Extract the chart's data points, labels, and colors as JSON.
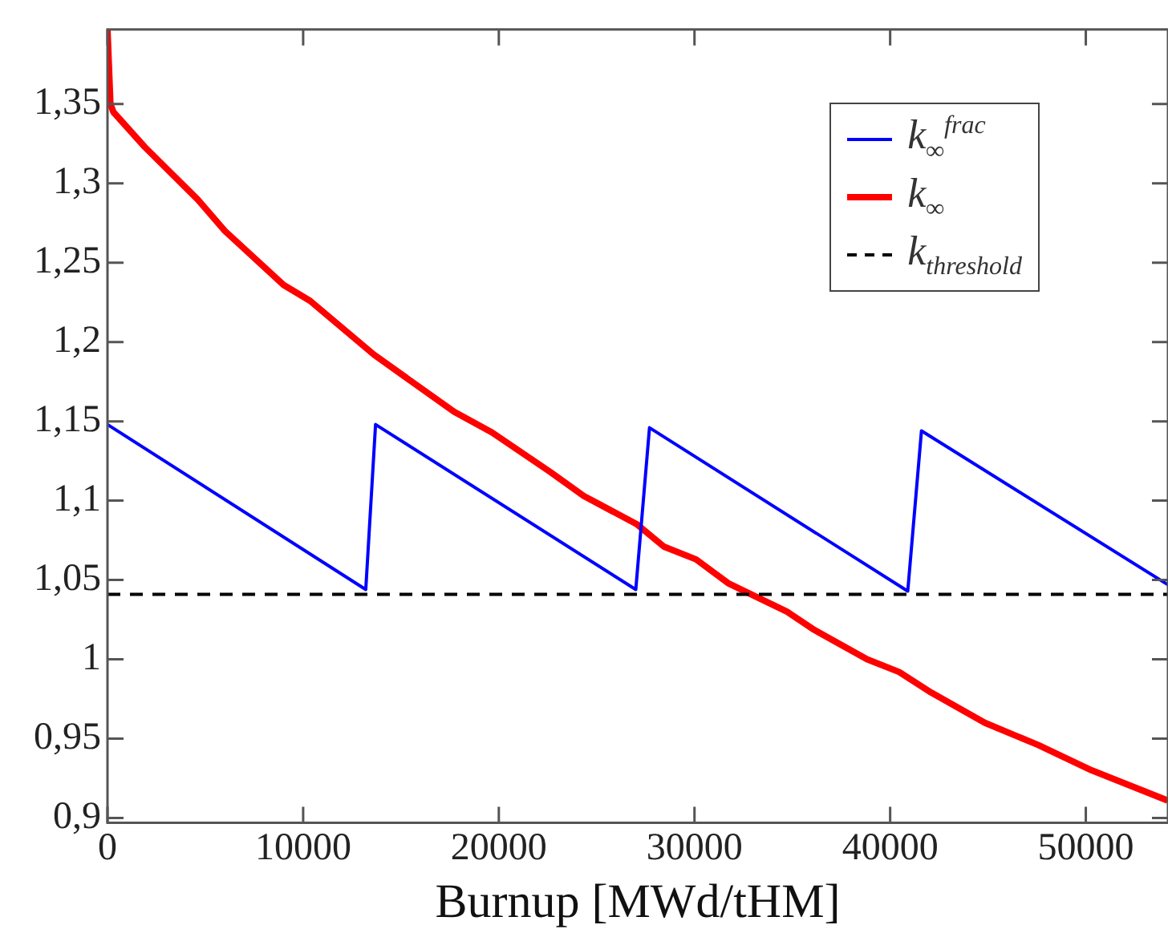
{
  "chart_data": {
    "type": "line",
    "xlabel": "Burnup [MWd/tHM]",
    "xlim": [
      0,
      54200
    ],
    "xticks": [
      0,
      10000,
      20000,
      30000,
      40000,
      50000
    ],
    "ylim": [
      0.897,
      1.397
    ],
    "yticks": [
      {
        "value": 0.9,
        "label": "0,9"
      },
      {
        "value": 0.95,
        "label": "0,95"
      },
      {
        "value": 1,
        "label": "1"
      },
      {
        "value": 1.05,
        "label": "1,05"
      },
      {
        "value": 1.1,
        "label": "1,1"
      },
      {
        "value": 1.15,
        "label": "1,15"
      },
      {
        "value": 1.2,
        "label": "1,2"
      },
      {
        "value": 1.25,
        "label": "1,25"
      },
      {
        "value": 1.3,
        "label": "1,3"
      },
      {
        "value": 1.35,
        "label": "1,35"
      }
    ],
    "grid": false,
    "legend": "top right",
    "line_style": "solid",
    "series": [
      {
        "name": "k$_{∞}$$^{frac}$",
        "color": "#0000ff",
        "x": [
          0,
          13200,
          13700,
          27000,
          27700,
          40900,
          41600,
          54200
        ],
        "values": [
          1.148,
          1.044,
          1.148,
          1.044,
          1.146,
          1.043,
          1.144,
          1.047
        ]
      },
      {
        "name": "k$_{∞}$",
        "color": "#ff0000",
        "x": [
          0,
          150,
          300,
          1900,
          4600,
          6000,
          9000,
          10350,
          13620,
          17720,
          19650,
          22640,
          24340,
          27070,
          28440,
          30080,
          31720,
          34730,
          36060,
          38820,
          40460,
          42100,
          44840,
          47560,
          50300,
          54180
        ],
        "values": [
          1.397,
          1.35,
          1.345,
          1.323,
          1.29,
          1.27,
          1.236,
          1.226,
          1.192,
          1.156,
          1.143,
          1.118,
          1.103,
          1.085,
          1.071,
          1.063,
          1.048,
          1.03,
          1.019,
          1.0,
          0.992,
          0.979,
          0.96,
          0.946,
          0.93,
          0.911
        ]
      }
    ],
    "ref_lines": [
      {
        "axis": "y",
        "value": 1.041,
        "label": "k$_{threshold}$",
        "color": "#000000",
        "line_style": "dashed"
      }
    ]
  }
}
